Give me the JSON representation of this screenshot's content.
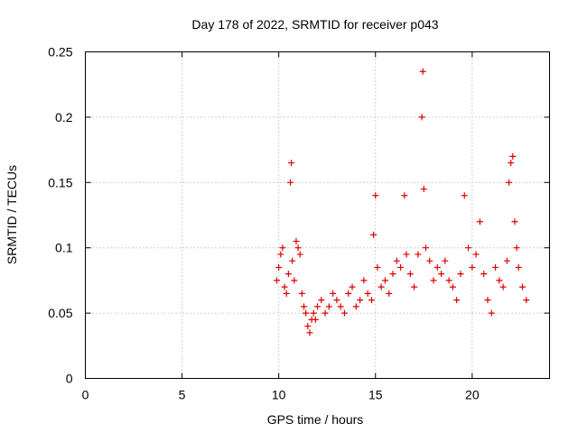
{
  "chart_data": {
    "type": "scatter",
    "title": "Day 178 of 2022, SRMTID for receiver p043",
    "xlabel": "GPS time / hours",
    "ylabel": "SRMTID / TECUs",
    "xlim": [
      0,
      24
    ],
    "ylim": [
      0,
      0.25
    ],
    "grid": true,
    "marker": "plus",
    "color": "#dd0000",
    "x_ticks": [
      0,
      5,
      10,
      15,
      20
    ],
    "x_tick_labels": [
      "0",
      "5",
      "10",
      "15",
      "20"
    ],
    "y_ticks": [
      0,
      0.05,
      0.1,
      0.15,
      0.2,
      0.25
    ],
    "y_tick_labels": [
      "0",
      "0.05",
      "0.1",
      "0.15",
      "0.2",
      "0.25"
    ],
    "series": [
      {
        "name": "SRMTID",
        "x": [
          9.9,
          10.0,
          10.1,
          10.2,
          10.3,
          10.4,
          10.5,
          10.6,
          10.65,
          10.7,
          10.8,
          10.9,
          11.0,
          11.1,
          11.2,
          11.3,
          11.4,
          11.5,
          11.6,
          11.7,
          11.8,
          11.9,
          12.0,
          12.2,
          12.4,
          12.6,
          12.8,
          13.0,
          13.2,
          13.4,
          13.6,
          13.8,
          14.0,
          14.2,
          14.4,
          14.6,
          14.8,
          14.9,
          15.0,
          15.1,
          15.3,
          15.5,
          15.7,
          15.9,
          16.1,
          16.3,
          16.5,
          16.6,
          16.8,
          17.0,
          17.2,
          17.4,
          17.45,
          17.5,
          17.6,
          17.8,
          18.0,
          18.2,
          18.4,
          18.6,
          18.8,
          19.0,
          19.2,
          19.4,
          19.6,
          19.8,
          20.0,
          20.2,
          20.4,
          20.6,
          20.8,
          21.0,
          21.2,
          21.4,
          21.6,
          21.8,
          21.9,
          22.0,
          22.1,
          22.2,
          22.3,
          22.4,
          22.6,
          22.8
        ],
        "y": [
          0.075,
          0.085,
          0.095,
          0.1,
          0.07,
          0.065,
          0.08,
          0.15,
          0.165,
          0.09,
          0.075,
          0.105,
          0.1,
          0.095,
          0.065,
          0.055,
          0.05,
          0.04,
          0.035,
          0.045,
          0.05,
          0.045,
          0.055,
          0.06,
          0.05,
          0.055,
          0.065,
          0.06,
          0.055,
          0.05,
          0.065,
          0.07,
          0.055,
          0.06,
          0.075,
          0.065,
          0.06,
          0.11,
          0.14,
          0.085,
          0.07,
          0.075,
          0.065,
          0.08,
          0.09,
          0.085,
          0.14,
          0.095,
          0.08,
          0.07,
          0.095,
          0.2,
          0.235,
          0.145,
          0.1,
          0.09,
          0.075,
          0.085,
          0.08,
          0.09,
          0.075,
          0.07,
          0.06,
          0.08,
          0.14,
          0.1,
          0.085,
          0.095,
          0.12,
          0.08,
          0.06,
          0.05,
          0.085,
          0.075,
          0.07,
          0.09,
          0.15,
          0.165,
          0.17,
          0.12,
          0.1,
          0.085,
          0.07,
          0.06
        ]
      }
    ]
  }
}
